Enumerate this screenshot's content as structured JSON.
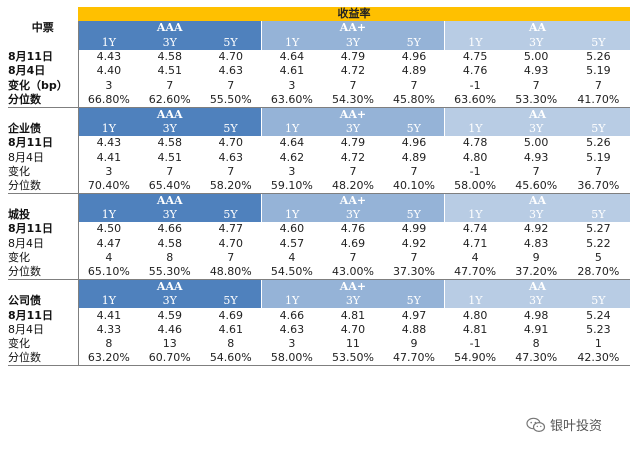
{
  "title": "收益率",
  "ratings": [
    "AAA",
    "AA+",
    "AA"
  ],
  "tenors": [
    "1Y",
    "3Y",
    "5Y"
  ],
  "watermark": "银叶投资",
  "blocks": [
    {
      "name": "中票",
      "rows": [
        {
          "label": "8月11日",
          "values": [
            "4.43",
            "4.58",
            "4.70",
            "4.64",
            "4.79",
            "4.96",
            "4.75",
            "5.00",
            "5.26"
          ]
        },
        {
          "label": "8月4日",
          "values": [
            "4.40",
            "4.51",
            "4.63",
            "4.61",
            "4.72",
            "4.89",
            "4.76",
            "4.93",
            "5.19"
          ]
        },
        {
          "label": "变化（bp）",
          "values": [
            "3",
            "7",
            "7",
            "3",
            "7",
            "7",
            "-1",
            "7",
            "7"
          ]
        },
        {
          "label": "分位数",
          "values": [
            "66.80%",
            "62.60%",
            "55.50%",
            "63.60%",
            "54.30%",
            "45.80%",
            "63.60%",
            "53.30%",
            "41.70%"
          ]
        }
      ]
    },
    {
      "name": "企业债",
      "rows": [
        {
          "label": "8月11日",
          "values": [
            "4.43",
            "4.58",
            "4.70",
            "4.64",
            "4.79",
            "4.96",
            "4.78",
            "5.00",
            "5.26"
          ]
        },
        {
          "label": "8月4日",
          "values": [
            "4.41",
            "4.51",
            "4.63",
            "4.62",
            "4.72",
            "4.89",
            "4.80",
            "4.93",
            "5.19"
          ]
        },
        {
          "label": "变化",
          "values": [
            "3",
            "7",
            "7",
            "3",
            "7",
            "7",
            "-1",
            "7",
            "7"
          ]
        },
        {
          "label": "分位数",
          "values": [
            "70.40%",
            "65.40%",
            "58.20%",
            "59.10%",
            "48.20%",
            "40.10%",
            "58.00%",
            "45.60%",
            "36.70%"
          ]
        }
      ]
    },
    {
      "name": "城投",
      "rows": [
        {
          "label": "8月11日",
          "values": [
            "4.50",
            "4.66",
            "4.77",
            "4.60",
            "4.76",
            "4.99",
            "4.74",
            "4.92",
            "5.27"
          ]
        },
        {
          "label": "8月4日",
          "values": [
            "4.47",
            "4.58",
            "4.70",
            "4.57",
            "4.69",
            "4.92",
            "4.71",
            "4.83",
            "5.22"
          ]
        },
        {
          "label": "变化",
          "values": [
            "4",
            "8",
            "7",
            "4",
            "7",
            "7",
            "4",
            "9",
            "5"
          ]
        },
        {
          "label": "分位数",
          "values": [
            "65.10%",
            "55.30%",
            "48.80%",
            "54.50%",
            "43.00%",
            "37.30%",
            "47.70%",
            "37.20%",
            "28.70%"
          ]
        }
      ]
    },
    {
      "name": "公司债",
      "rows": [
        {
          "label": "8月11日",
          "values": [
            "4.41",
            "4.59",
            "4.69",
            "4.66",
            "4.81",
            "4.97",
            "4.80",
            "4.98",
            "5.24"
          ]
        },
        {
          "label": "8月4日",
          "values": [
            "4.33",
            "4.46",
            "4.61",
            "4.63",
            "4.70",
            "4.88",
            "4.81",
            "4.91",
            "5.23"
          ]
        },
        {
          "label": "变化",
          "values": [
            "8",
            "13",
            "8",
            "3",
            "11",
            "9",
            "-1",
            "8",
            "1"
          ]
        },
        {
          "label": "分位数",
          "values": [
            "63.20%",
            "60.70%",
            "54.60%",
            "58.00%",
            "53.50%",
            "47.70%",
            "54.90%",
            "47.30%",
            "42.30%"
          ]
        }
      ]
    }
  ]
}
